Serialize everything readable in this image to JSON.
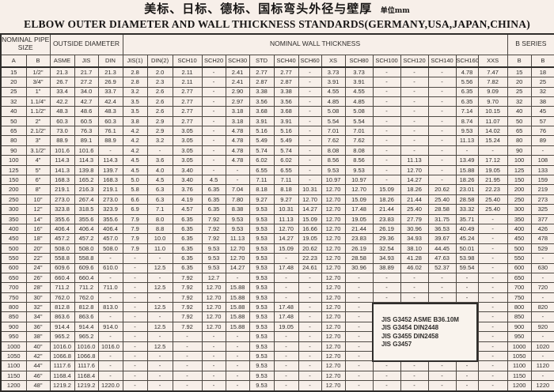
{
  "title": {
    "zh": "美标、日标、德标、国标弯头外径与壁厚",
    "unit": "单位mm",
    "en": "ELBOW OUTER DIAMETER AND WALL THICKNESS STANDARDS(GERMANY,USA,JAPAN,CHINA)"
  },
  "table": {
    "group_headers": [
      {
        "label": "NOMINAL PIPE SIZE",
        "span": 2
      },
      {
        "label": "OUTSIDE DIAMETER",
        "span": 3
      },
      {
        "label": "NOMINAL WALL THICKNESS",
        "span": 15
      },
      {
        "label": "B SERIES",
        "span": 2
      }
    ],
    "columns": [
      "A",
      "B",
      "ASME",
      "JIS",
      "DIN",
      "JIS(1)",
      "DIN(2)",
      "SCH10",
      "SCH20",
      "SCH30",
      "STD",
      "SCH40",
      "SCH60",
      "XS",
      "SCH80",
      "SCH100",
      "SCH120",
      "SCH140",
      "SCH160",
      "XXS",
      "B",
      "B"
    ],
    "rows": [
      [
        "15",
        "1/2\"",
        "21.3",
        "21.7",
        "21.3",
        "2.8",
        "2.0",
        "2.11",
        "-",
        "2.41",
        "2.77",
        "2.77",
        "-",
        "3.73",
        "3.73",
        "-",
        "-",
        "-",
        "4.78",
        "7.47",
        "15",
        "18"
      ],
      [
        "20",
        "3/4\"",
        "26.7",
        "27.2",
        "26.9",
        "2.8",
        "2.3",
        "2.11",
        "-",
        "2.41",
        "2.87",
        "2.87",
        "-",
        "3.91",
        "3.91",
        "-",
        "-",
        "-",
        "5.56",
        "7.82",
        "20",
        "25"
      ],
      [
        "25",
        "1\"",
        "33.4",
        "34.0",
        "33.7",
        "3.2",
        "2.6",
        "2.77",
        "-",
        "2.90",
        "3.38",
        "3.38",
        "-",
        "4.55",
        "4.55",
        "-",
        "-",
        "-",
        "6.35",
        "9.09",
        "25",
        "32"
      ],
      [
        "32",
        "1.1/4\"",
        "42.2",
        "42.7",
        "42.4",
        "3.5",
        "2.6",
        "2.77",
        "-",
        "2.97",
        "3.56",
        "3.56",
        "-",
        "4.85",
        "4.85",
        "-",
        "-",
        "-",
        "6.35",
        "9.70",
        "32",
        "38"
      ],
      [
        "40",
        "1.1/2\"",
        "48.3",
        "48.6",
        "48.3",
        "3.5",
        "2.6",
        "2.77",
        "-",
        "3.18",
        "3.68",
        "3.68",
        "-",
        "5.08",
        "5.08",
        "-",
        "-",
        "-",
        "7.14",
        "10.15",
        "40",
        "45"
      ],
      [
        "50",
        "2\"",
        "60.3",
        "60.5",
        "60.3",
        "3.8",
        "2.9",
        "2.77",
        "-",
        "3.18",
        "3.91",
        "3.91",
        "-",
        "5.54",
        "5.54",
        "-",
        "-",
        "-",
        "8.74",
        "11.07",
        "50",
        "57"
      ],
      [
        "65",
        "2.1/2\"",
        "73.0",
        "76.3",
        "76.1",
        "4.2",
        "2.9",
        "3.05",
        "-",
        "4.78",
        "5.16",
        "5.16",
        "-",
        "7.01",
        "7.01",
        "-",
        "-",
        "-",
        "9.53",
        "14.02",
        "65",
        "76"
      ],
      [
        "80",
        "3\"",
        "88.9",
        "89.1",
        "88.9",
        "4.2",
        "3.2",
        "3.05",
        "-",
        "4.78",
        "5.49",
        "5.49",
        "-",
        "7.62",
        "7.62",
        "-",
        "-",
        "-",
        "11.13",
        "15.24",
        "80",
        "89"
      ],
      [
        "90",
        "3.1/2\"",
        "101.6",
        "101.6",
        "-",
        "4.2",
        "-",
        "3.05",
        "-",
        "4.78",
        "5.74",
        "5.74",
        "-",
        "8.08",
        "8.08",
        "-",
        "-",
        "-",
        "-",
        "-",
        "90",
        "-"
      ],
      [
        "100",
        "4\"",
        "114.3",
        "114.3",
        "114.3",
        "4.5",
        "3.6",
        "3.05",
        "-",
        "4.78",
        "6.02",
        "6.02",
        "-",
        "8.56",
        "8.56",
        "-",
        "11.13",
        "-",
        "13.49",
        "17.12",
        "100",
        "108"
      ],
      [
        "125",
        "5\"",
        "141.3",
        "139.8",
        "139.7",
        "4.5",
        "4.0",
        "3.40",
        "-",
        "-",
        "6.55",
        "6.55",
        "-",
        "9.53",
        "9.53",
        "-",
        "12.70",
        "-",
        "15.88",
        "19.05",
        "125",
        "133"
      ],
      [
        "150",
        "6\"",
        "168.3",
        "165.2",
        "168.3",
        "5.0",
        "4.5",
        "3.40",
        "4.5",
        "-",
        "7.11",
        "7.11",
        "-",
        "10.97",
        "10.97",
        "-",
        "14.27",
        "-",
        "18.26",
        "21.95",
        "150",
        "159"
      ],
      [
        "200",
        "8\"",
        "219.1",
        "216.3",
        "219.1",
        "5.8",
        "6.3",
        "3.76",
        "6.35",
        "7.04",
        "8.18",
        "8.18",
        "10.31",
        "12.70",
        "12.70",
        "15.09",
        "18.26",
        "20.62",
        "23.01",
        "22.23",
        "200",
        "219"
      ],
      [
        "250",
        "10\"",
        "273.0",
        "267.4",
        "273.0",
        "6.6",
        "6.3",
        "4.19",
        "6.35",
        "7.80",
        "9.27",
        "9.27",
        "12.70",
        "12.70",
        "15.09",
        "18.26",
        "21.44",
        "25.40",
        "28.58",
        "25.40",
        "250",
        "273"
      ],
      [
        "300",
        "12\"",
        "323.8",
        "318.5",
        "323.9",
        "6.9",
        "7.1",
        "4.57",
        "6.35",
        "8.38",
        "9.53",
        "10.31",
        "14.27",
        "12.70",
        "17.48",
        "21.44",
        "25.40",
        "28.58",
        "33.32",
        "25.40",
        "300",
        "325"
      ],
      [
        "350",
        "14\"",
        "355.6",
        "355.6",
        "355.6",
        "7.9",
        "8.0",
        "6.35",
        "7.92",
        "9.53",
        "9.53",
        "11.13",
        "15.09",
        "12.70",
        "19.05",
        "23.83",
        "27.79",
        "31.75",
        "35.71",
        "-",
        "350",
        "377"
      ],
      [
        "400",
        "16\"",
        "406.4",
        "406.4",
        "406.4",
        "7.9",
        "8.8",
        "6.35",
        "7.92",
        "9.53",
        "9.53",
        "12.70",
        "16.66",
        "12.70",
        "21.44",
        "26.19",
        "30.96",
        "36.53",
        "40.49",
        "-",
        "400",
        "426"
      ],
      [
        "450",
        "18\"",
        "457.2",
        "457.2",
        "457.0",
        "7.9",
        "10.0",
        "6.35",
        "7.92",
        "11.13",
        "9.53",
        "14.27",
        "19.05",
        "12.70",
        "23.83",
        "29.36",
        "34.93",
        "39.67",
        "45.24",
        "-",
        "450",
        "478"
      ],
      [
        "500",
        "20\"",
        "508.0",
        "508.0",
        "508.0",
        "7.9",
        "11.0",
        "6.35",
        "9.53",
        "12.70",
        "9.53",
        "15.09",
        "20.62",
        "12.70",
        "26.19",
        "32.54",
        "38.10",
        "44.45",
        "50.01",
        "-",
        "500",
        "529"
      ],
      [
        "550",
        "22\"",
        "558.8",
        "558.8",
        "-",
        "-",
        "-",
        "6.35",
        "9.53",
        "12.70",
        "9.53",
        "-",
        "22.23",
        "12.70",
        "28.58",
        "34.93",
        "41.28",
        "47.63",
        "53.98",
        "-",
        "550",
        "-"
      ],
      [
        "600",
        "24\"",
        "609.6",
        "609.6",
        "610.0",
        "-",
        "12.5",
        "6.35",
        "9.53",
        "14.27",
        "9.53",
        "17.48",
        "24.61",
        "12.70",
        "30.96",
        "38.89",
        "46.02",
        "52.37",
        "59.54",
        "-",
        "600",
        "630"
      ],
      [
        "650",
        "26\"",
        "660.4",
        "660.4",
        "-",
        "-",
        "-",
        "7.92",
        "12.7",
        "-",
        "9.53",
        "-",
        "-",
        "12.70",
        "-",
        "-",
        "-",
        "-",
        "-",
        "-",
        "650",
        "-"
      ],
      [
        "700",
        "28\"",
        "711.2",
        "711.2",
        "711.0",
        "-",
        "12.5",
        "7.92",
        "12.70",
        "15.88",
        "9.53",
        "-",
        "-",
        "12.70",
        "-",
        "-",
        "-",
        "-",
        "-",
        "-",
        "700",
        "720"
      ],
      [
        "750",
        "30\"",
        "762.0",
        "762.0",
        "-",
        "-",
        "-",
        "7.92",
        "12.70",
        "15.88",
        "9.53",
        "-",
        "-",
        "12.70",
        "-",
        "-",
        "-",
        "-",
        "-",
        "-",
        "750",
        "-"
      ],
      [
        "800",
        "32\"",
        "812.8",
        "812.8",
        "813.0",
        "-",
        "12.5",
        "7.92",
        "12.70",
        "15.88",
        "9.53",
        "17.48",
        "-",
        "12.70",
        "-",
        "",
        "",
        "",
        "",
        "-",
        "800",
        "820"
      ],
      [
        "850",
        "34\"",
        "863.6",
        "863.6",
        "-",
        "-",
        "-",
        "7.92",
        "12.70",
        "15.88",
        "9.53",
        "17.48",
        "-",
        "12.70",
        "-",
        "",
        "",
        "",
        "",
        "-",
        "850",
        "-"
      ],
      [
        "900",
        "36\"",
        "914.4",
        "914.4",
        "914.0",
        "-",
        "12.5",
        "7.92",
        "12.70",
        "15.88",
        "9.53",
        "19.05",
        "-",
        "12.70",
        "-",
        "",
        "",
        "",
        "",
        "-",
        "900",
        "920"
      ],
      [
        "950",
        "38\"",
        "965.2",
        "965.2",
        "-",
        "-",
        "-",
        "-",
        "-",
        "-",
        "9.53",
        "-",
        "-",
        "12.70",
        "-",
        "",
        "",
        "",
        "",
        "-",
        "950",
        "-"
      ],
      [
        "1000",
        "40\"",
        "1016.0",
        "1016.0",
        "1016.0",
        "-",
        "12.5",
        "-",
        "-",
        "-",
        "9.53",
        "-",
        "-",
        "12.70",
        "-",
        "",
        "",
        "",
        "",
        "-",
        "1000",
        "1020"
      ],
      [
        "1050",
        "42\"",
        "1066.8",
        "1066.8",
        "-",
        "-",
        "-",
        "-",
        "-",
        "-",
        "9.53",
        "-",
        "-",
        "12.70",
        "-",
        "",
        "",
        "",
        "",
        "-",
        "1050",
        "-"
      ],
      [
        "1100",
        "44\"",
        "1117.6",
        "1117.6",
        "-",
        "-",
        "-",
        "-",
        "-",
        "-",
        "9.53",
        "-",
        "-",
        "12.70",
        "-",
        "-",
        "-",
        "-",
        "-",
        "-",
        "1100",
        "1120"
      ],
      [
        "1150",
        "46\"",
        "1168.4",
        "1168.4",
        "-",
        "-",
        "-",
        "-",
        "-",
        "-",
        "9.53",
        "-",
        "-",
        "12.70",
        "-",
        "-",
        "-",
        "-",
        "-",
        "-",
        "1150",
        "-"
      ],
      [
        "1200",
        "48\"",
        "1219.2",
        "1219.2",
        "1220.0",
        "-",
        "-",
        "-",
        "-",
        "-",
        "9.53",
        "-",
        "-",
        "12.70",
        "-",
        "-",
        "-",
        "-",
        "-",
        "-",
        "1200",
        "1220"
      ]
    ],
    "note_lines": [
      "JIS G3452 ASME B36.10M",
      "JIS G3454 DIN2448",
      "JIS G3455 DIN2458",
      "JIS G3457"
    ]
  },
  "colors": {
    "page_background": "#f7efe9",
    "border": "#4d4843",
    "text": "#2e2c2a"
  }
}
